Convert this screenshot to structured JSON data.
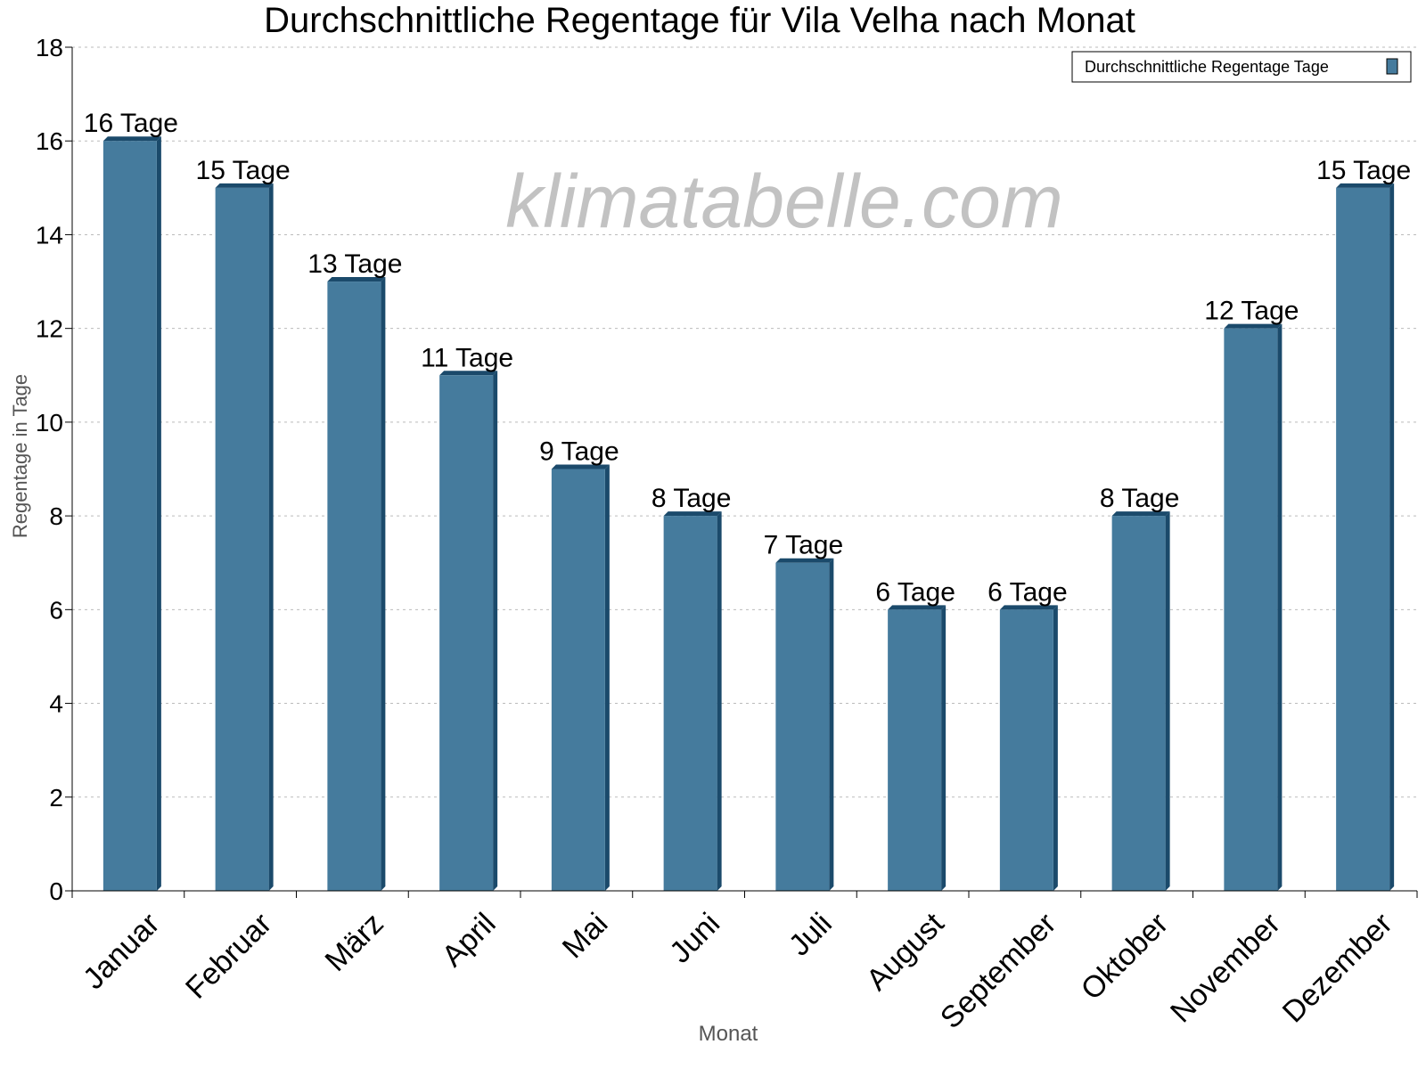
{
  "chart_data": {
    "type": "bar",
    "title": "Durchschnittliche Regentage für Vila Velha nach Monat",
    "xlabel": "Monat",
    "ylabel": "Regentage in Tage",
    "ylim": [
      0,
      18
    ],
    "yticks": [
      0,
      2,
      4,
      6,
      8,
      10,
      12,
      14,
      16,
      18
    ],
    "grid": true,
    "legend_placement": "top-right",
    "categories": [
      "Januar",
      "Februar",
      "März",
      "April",
      "Mai",
      "Juni",
      "Juli",
      "August",
      "September",
      "Oktober",
      "November",
      "Dezember"
    ],
    "series": [
      {
        "name": "Durchschnittliche Regentage Tage",
        "values": [
          16,
          15,
          13,
          11,
          9,
          8,
          7,
          6,
          6,
          8,
          12,
          15
        ],
        "color": "#457b9d",
        "shade_color": "#1b4a6b"
      }
    ],
    "data_labels": [
      "16 Tage",
      "15 Tage",
      "13 Tage",
      "11 Tage",
      "9 Tage",
      "8 Tage",
      "7 Tage",
      "6 Tage",
      "6 Tage",
      "8 Tage",
      "12 Tage",
      "15 Tage"
    ],
    "watermark": "klimatabelle.com"
  }
}
